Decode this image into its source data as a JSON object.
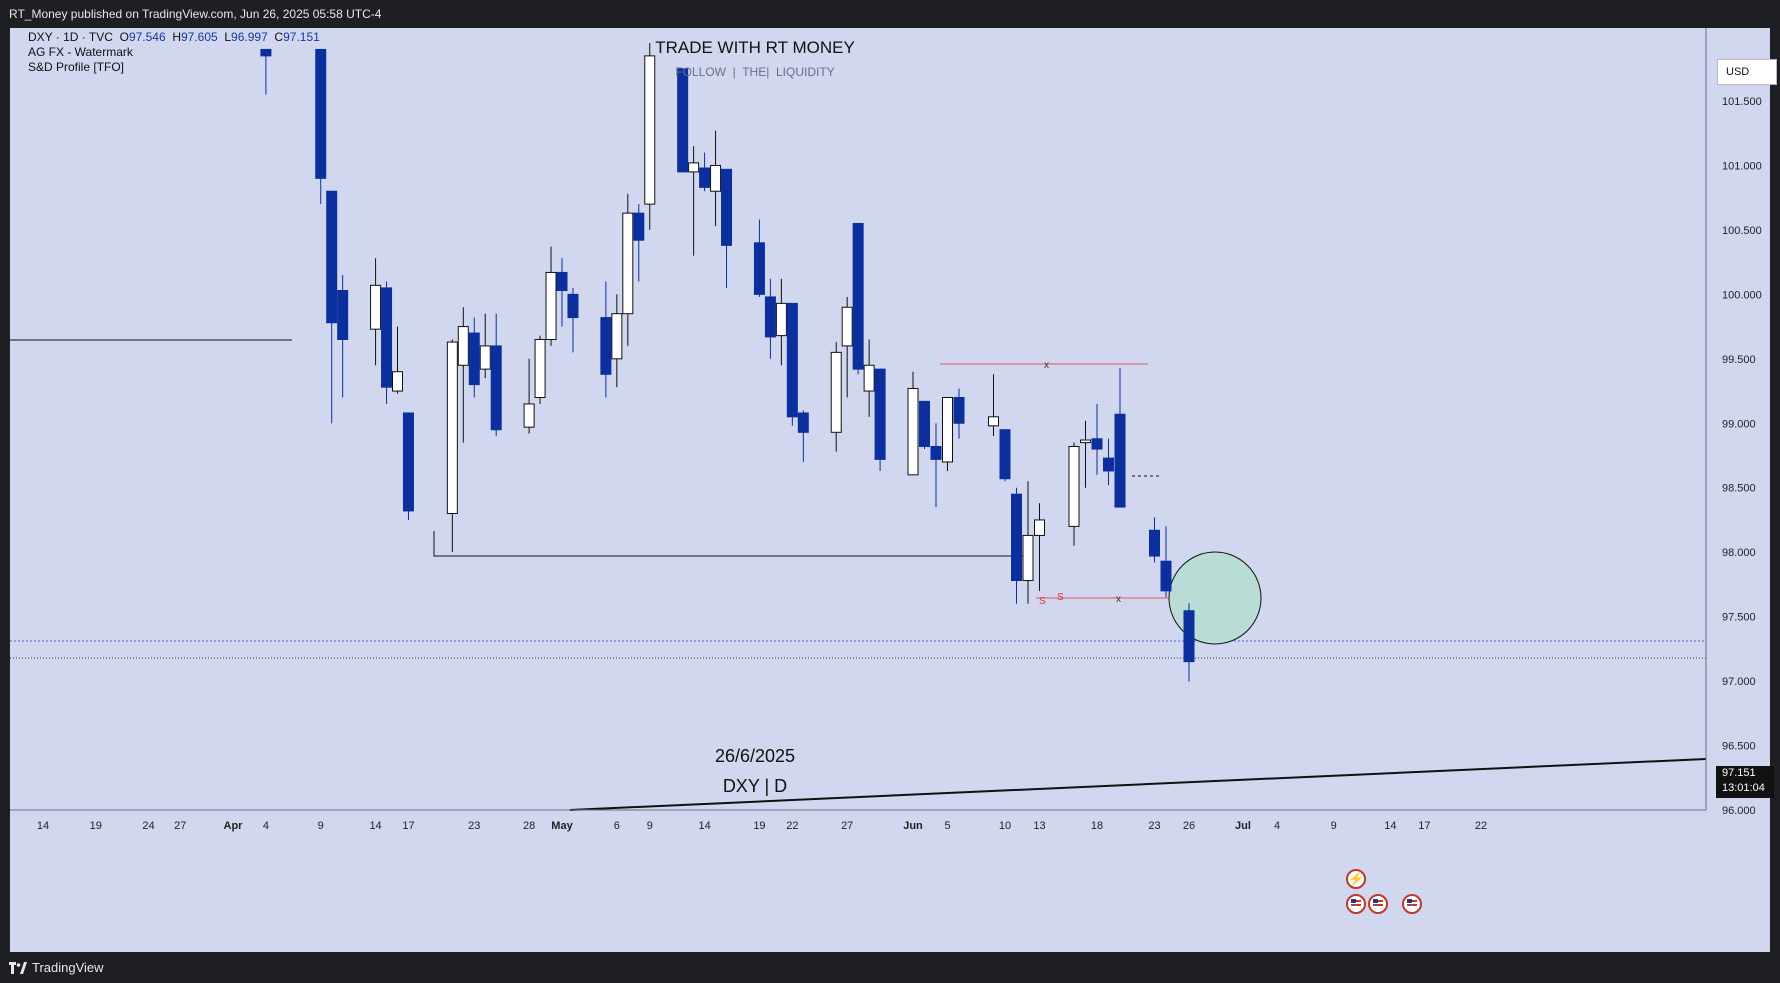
{
  "header": {
    "publish_text": "RT_Money published on TradingView.com, Jun 26, 2025 05:58 UTC-4"
  },
  "legend": {
    "symbol": "DXY · 1D · TVC",
    "open_label": "O",
    "open": "97.546",
    "high_label": "H",
    "high": "97.605",
    "low_label": "L",
    "low": "96.997",
    "close_label": "C",
    "close": "97.151",
    "indicator_1": "AG FX - Watermark",
    "indicator_2": "S&D Profile [TFO]"
  },
  "watermark": {
    "title": "TRADE WITH RT MONEY",
    "subtitle": "FOLLOW  |  THE|  LIQUIDITY"
  },
  "annotations": {
    "date": "26/6/2025",
    "symbol_tf": "DXY | D",
    "s_mark_1": "S",
    "s_mark_2": "S",
    "x_mark_1": "x",
    "x_mark_2": "x"
  },
  "currency_button": "USD",
  "last_price": {
    "price": "97.151",
    "countdown": "13:01:04"
  },
  "footer": {
    "brand": "TradingView"
  },
  "colors": {
    "background": "#d0d7ef",
    "bearish": "#0c2f9e",
    "bullish": "#ffffff",
    "circle": "#b9ddd6"
  },
  "chart_data": {
    "type": "candlestick",
    "title": "",
    "xlabel": "",
    "ylabel": "",
    "ylim": [
      96.0,
      101.9
    ],
    "y_ticks": [
      101.5,
      101.0,
      100.5,
      100.0,
      99.5,
      99.0,
      98.5,
      98.0,
      97.5,
      97.0,
      96.5,
      96.0
    ],
    "y_tick_labels": [
      "101.500",
      "101.000",
      "100.500",
      "100.000",
      "99.500",
      "99.000",
      "98.500",
      "98.000",
      "97.500",
      "97.000",
      "96.500",
      "96.000"
    ],
    "x_ticks": [
      {
        "label": "14",
        "date": "2025-03-14"
      },
      {
        "label": "19",
        "date": "2025-03-19"
      },
      {
        "label": "24",
        "date": "2025-03-24"
      },
      {
        "label": "27",
        "date": "2025-03-27"
      },
      {
        "label": "Apr",
        "date": "2025-04-01"
      },
      {
        "label": "4",
        "date": "2025-04-04"
      },
      {
        "label": "9",
        "date": "2025-04-09"
      },
      {
        "label": "14",
        "date": "2025-04-14"
      },
      {
        "label": "17",
        "date": "2025-04-17"
      },
      {
        "label": "23",
        "date": "2025-04-23"
      },
      {
        "label": "28",
        "date": "2025-04-28"
      },
      {
        "label": "May",
        "date": "2025-05-01"
      },
      {
        "label": "6",
        "date": "2025-05-06"
      },
      {
        "label": "9",
        "date": "2025-05-09"
      },
      {
        "label": "14",
        "date": "2025-05-14"
      },
      {
        "label": "19",
        "date": "2025-05-19"
      },
      {
        "label": "22",
        "date": "2025-05-22"
      },
      {
        "label": "27",
        "date": "2025-05-27"
      },
      {
        "label": "Jun",
        "date": "2025-06-02"
      },
      {
        "label": "5",
        "date": "2025-06-05"
      },
      {
        "label": "10",
        "date": "2025-06-10"
      },
      {
        "label": "13",
        "date": "2025-06-13"
      },
      {
        "label": "18",
        "date": "2025-06-18"
      },
      {
        "label": "23",
        "date": "2025-06-23"
      },
      {
        "label": "26",
        "date": "2025-06-26"
      },
      {
        "label": "Jul",
        "date": "2025-07-01"
      },
      {
        "label": "4",
        "date": "2025-07-04"
      },
      {
        "label": "9",
        "date": "2025-07-09"
      },
      {
        "label": "14",
        "date": "2025-07-14"
      },
      {
        "label": "17",
        "date": "2025-07-17"
      },
      {
        "label": "22",
        "date": "2025-07-22"
      }
    ],
    "candles": [
      {
        "date": "2025-04-04",
        "o": 101.9,
        "h": 101.9,
        "l": 101.55,
        "c": 101.85
      },
      {
        "date": "2025-04-09",
        "o": 101.9,
        "h": 101.9,
        "l": 100.7,
        "c": 100.9
      },
      {
        "date": "2025-04-10",
        "o": 100.8,
        "h": 100.8,
        "l": 99.0,
        "c": 99.78
      },
      {
        "date": "2025-04-11",
        "o": 100.03,
        "h": 100.15,
        "l": 99.2,
        "c": 99.65
      },
      {
        "date": "2025-04-14",
        "o": 99.73,
        "h": 100.28,
        "l": 99.45,
        "c": 100.07
      },
      {
        "date": "2025-04-15",
        "o": 100.05,
        "h": 100.1,
        "l": 99.15,
        "c": 99.28
      },
      {
        "date": "2025-04-16",
        "o": 99.25,
        "h": 99.75,
        "l": 99.23,
        "c": 99.4
      },
      {
        "date": "2025-04-17",
        "o": 99.08,
        "h": 99.08,
        "l": 98.25,
        "c": 98.32
      },
      {
        "date": "2025-04-21",
        "o": 98.3,
        "h": 99.65,
        "l": 98.0,
        "c": 99.63
      },
      {
        "date": "2025-04-22",
        "o": 99.45,
        "h": 99.9,
        "l": 98.85,
        "c": 99.75
      },
      {
        "date": "2025-04-23",
        "o": 99.7,
        "h": 99.82,
        "l": 99.2,
        "c": 99.3
      },
      {
        "date": "2025-04-24",
        "o": 99.42,
        "h": 99.85,
        "l": 99.35,
        "c": 99.6
      },
      {
        "date": "2025-04-25",
        "o": 99.6,
        "h": 99.85,
        "l": 98.9,
        "c": 98.95
      },
      {
        "date": "2025-04-28",
        "o": 98.97,
        "h": 99.5,
        "l": 98.92,
        "c": 99.15
      },
      {
        "date": "2025-04-29",
        "o": 99.2,
        "h": 99.68,
        "l": 99.15,
        "c": 99.65
      },
      {
        "date": "2025-04-30",
        "o": 99.65,
        "h": 100.37,
        "l": 99.6,
        "c": 100.17
      },
      {
        "date": "2025-05-01",
        "o": 100.17,
        "h": 100.28,
        "l": 99.75,
        "c": 100.03
      },
      {
        "date": "2025-05-02",
        "o": 100.0,
        "h": 100.05,
        "l": 99.55,
        "c": 99.82
      },
      {
        "date": "2025-05-05",
        "o": 99.82,
        "h": 100.1,
        "l": 99.2,
        "c": 99.38
      },
      {
        "date": "2025-05-06",
        "o": 99.5,
        "h": 100.0,
        "l": 99.28,
        "c": 99.85
      },
      {
        "date": "2025-05-07",
        "o": 99.85,
        "h": 100.78,
        "l": 99.6,
        "c": 100.63
      },
      {
        "date": "2025-05-08",
        "o": 100.63,
        "h": 100.7,
        "l": 100.1,
        "c": 100.42
      },
      {
        "date": "2025-05-09",
        "o": 100.7,
        "h": 101.95,
        "l": 100.5,
        "c": 101.85
      },
      {
        "date": "2025-05-12",
        "o": 101.75,
        "h": 101.75,
        "l": 100.95,
        "c": 100.95
      },
      {
        "date": "2025-05-13",
        "o": 100.95,
        "h": 101.15,
        "l": 100.3,
        "c": 101.02
      },
      {
        "date": "2025-05-14",
        "o": 100.98,
        "h": 101.1,
        "l": 100.8,
        "c": 100.83
      },
      {
        "date": "2025-05-15",
        "o": 100.8,
        "h": 101.27,
        "l": 100.53,
        "c": 101.0
      },
      {
        "date": "2025-05-16",
        "o": 100.97,
        "h": 100.97,
        "l": 100.05,
        "c": 100.38
      },
      {
        "date": "2025-05-19",
        "o": 100.4,
        "h": 100.58,
        "l": 99.98,
        "c": 100.0
      },
      {
        "date": "2025-05-20",
        "o": 99.98,
        "h": 100.12,
        "l": 99.5,
        "c": 99.67
      },
      {
        "date": "2025-05-21",
        "o": 99.68,
        "h": 100.12,
        "l": 99.45,
        "c": 99.93
      },
      {
        "date": "2025-05-22",
        "o": 99.93,
        "h": 99.93,
        "l": 98.98,
        "c": 99.05
      },
      {
        "date": "2025-05-23",
        "o": 99.08,
        "h": 99.1,
        "l": 98.7,
        "c": 98.93
      },
      {
        "date": "2025-05-26",
        "o": 98.93,
        "h": 99.63,
        "l": 98.78,
        "c": 99.55
      },
      {
        "date": "2025-05-27",
        "o": 99.6,
        "h": 99.98,
        "l": 99.2,
        "c": 99.9
      },
      {
        "date": "2025-05-28",
        "o": 100.55,
        "h": 100.55,
        "l": 99.38,
        "c": 99.42
      },
      {
        "date": "2025-05-29",
        "o": 99.25,
        "h": 99.65,
        "l": 99.05,
        "c": 99.45
      },
      {
        "date": "2025-05-30",
        "o": 99.42,
        "h": 99.42,
        "l": 98.63,
        "c": 98.72
      },
      {
        "date": "2025-06-02",
        "o": 98.6,
        "h": 99.4,
        "l": 98.6,
        "c": 99.27
      },
      {
        "date": "2025-06-03",
        "o": 99.17,
        "h": 99.17,
        "l": 98.8,
        "c": 98.82
      },
      {
        "date": "2025-06-04",
        "o": 98.82,
        "h": 99.0,
        "l": 98.35,
        "c": 98.72
      },
      {
        "date": "2025-06-05",
        "o": 98.7,
        "h": 99.2,
        "l": 98.63,
        "c": 99.2
      },
      {
        "date": "2025-06-06",
        "o": 99.2,
        "h": 99.27,
        "l": 98.88,
        "c": 99.0
      },
      {
        "date": "2025-06-09",
        "o": 98.98,
        "h": 99.38,
        "l": 98.9,
        "c": 99.05
      },
      {
        "date": "2025-06-10",
        "o": 98.95,
        "h": 98.95,
        "l": 98.55,
        "c": 98.57
      },
      {
        "date": "2025-06-11",
        "o": 98.45,
        "h": 98.5,
        "l": 97.6,
        "c": 97.78
      },
      {
        "date": "2025-06-12",
        "o": 97.78,
        "h": 98.55,
        "l": 97.6,
        "c": 98.13
      },
      {
        "date": "2025-06-13",
        "o": 98.13,
        "h": 98.38,
        "l": 97.7,
        "c": 98.25
      },
      {
        "date": "2025-06-16",
        "o": 98.2,
        "h": 98.85,
        "l": 98.05,
        "c": 98.82
      },
      {
        "date": "2025-06-17",
        "o": 98.85,
        "h": 99.02,
        "l": 98.5,
        "c": 98.87
      },
      {
        "date": "2025-06-18",
        "o": 98.88,
        "h": 99.15,
        "l": 98.6,
        "c": 98.8
      },
      {
        "date": "2025-06-19",
        "o": 98.73,
        "h": 98.88,
        "l": 98.52,
        "c": 98.63
      },
      {
        "date": "2025-06-20",
        "o": 99.07,
        "h": 99.43,
        "l": 98.35,
        "c": 98.35
      },
      {
        "date": "2025-06-23",
        "o": 98.17,
        "h": 98.27,
        "l": 97.92,
        "c": 97.97
      },
      {
        "date": "2025-06-24",
        "o": 97.93,
        "h": 98.2,
        "l": 97.65,
        "c": 97.7
      },
      {
        "date": "2025-06-26",
        "o": 97.546,
        "h": 97.605,
        "l": 96.997,
        "c": 97.151
      }
    ]
  }
}
